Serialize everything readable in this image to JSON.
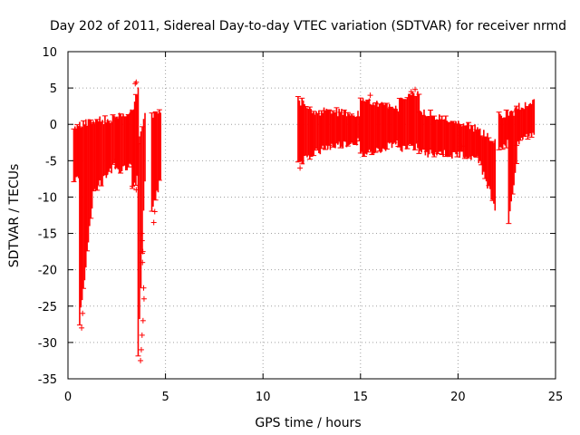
{
  "chart_data": {
    "type": "scatter",
    "title": "Day 202 of 2011, Sidereal Day-to-day VTEC variation (SDTVAR) for receiver nrmd",
    "xlabel": "GPS time / hours",
    "ylabel": "SDTVAR / TECUs",
    "xlim": [
      0,
      25
    ],
    "ylim": [
      -35,
      10
    ],
    "xticks": [
      0,
      5,
      10,
      15,
      20,
      25
    ],
    "yticks": [
      -35,
      -30,
      -25,
      -20,
      -15,
      -10,
      -5,
      0,
      5,
      10
    ],
    "grid": true,
    "series_color": "#ff0000",
    "series": [
      {
        "name": "SDTVAR",
        "segments": [
          {
            "x_start": 0.3,
            "x_end": 0.6,
            "lower": [
              -8,
              -8.5
            ],
            "upper": [
              0,
              0.5
            ]
          },
          {
            "x_start": 0.6,
            "x_end": 1.3,
            "lower": [
              -28,
              -10
            ],
            "upper": [
              0.5,
              1
            ]
          },
          {
            "x_start": 1.3,
            "x_end": 2.5,
            "lower": [
              -10,
              -6
            ],
            "upper": [
              1,
              1.5
            ]
          },
          {
            "x_start": 2.5,
            "x_end": 3.3,
            "lower": [
              -7,
              -6
            ],
            "upper": [
              1.5,
              2.5
            ]
          },
          {
            "x_start": 3.3,
            "x_end": 3.6,
            "lower": [
              -9,
              -8
            ],
            "upper": [
              2,
              5.8
            ]
          },
          {
            "x_start": 3.6,
            "x_end": 3.95,
            "lower": [
              -32.5,
              -8
            ],
            "upper": [
              -2,
              2.5
            ]
          },
          {
            "x_start": 4.3,
            "x_end": 4.75,
            "lower": [
              -13,
              -8
            ],
            "upper": [
              2,
              2.5
            ]
          },
          {
            "x_start": 11.8,
            "x_end": 13.0,
            "lower": [
              -6,
              -4
            ],
            "upper": [
              4,
              1.8
            ]
          },
          {
            "x_start": 13.0,
            "x_end": 15.0,
            "lower": [
              -4,
              -3
            ],
            "upper": [
              2.5,
              2
            ]
          },
          {
            "x_start": 15.0,
            "x_end": 17.0,
            "lower": [
              -5,
              -3
            ],
            "upper": [
              4,
              2.5
            ]
          },
          {
            "x_start": 17.0,
            "x_end": 18.0,
            "lower": [
              -4,
              -3.5
            ],
            "upper": [
              4,
              5
            ]
          },
          {
            "x_start": 18.0,
            "x_end": 21.0,
            "lower": [
              -4.5,
              -5
            ],
            "upper": [
              2.5,
              0
            ]
          },
          {
            "x_start": 21.0,
            "x_end": 21.9,
            "lower": [
              -5,
              -12
            ],
            "upper": [
              0,
              -2
            ]
          },
          {
            "x_start": 22.1,
            "x_end": 22.6,
            "lower": [
              -4,
              -3
            ],
            "upper": [
              2,
              2
            ]
          },
          {
            "x_start": 22.6,
            "x_end": 23.0,
            "lower": [
              -14,
              -6
            ],
            "upper": [
              2,
              2.5
            ]
          },
          {
            "x_start": 23.0,
            "x_end": 23.9,
            "lower": [
              -3,
              -2
            ],
            "upper": [
              3,
              3.5
            ]
          }
        ],
        "points": [
          [
            0.7,
            -28
          ],
          [
            0.75,
            -26
          ],
          [
            3.45,
            5.6
          ],
          [
            3.5,
            5.8
          ],
          [
            3.78,
            -15
          ],
          [
            3.8,
            -16
          ],
          [
            3.82,
            -19
          ],
          [
            3.84,
            -17.5
          ],
          [
            3.72,
            -32.5
          ],
          [
            3.76,
            -31
          ],
          [
            3.8,
            -29
          ],
          [
            3.85,
            -27
          ],
          [
            3.9,
            -24
          ],
          [
            3.88,
            -22.5
          ],
          [
            3.3,
            -8.5
          ],
          [
            3.5,
            -9
          ],
          [
            4.4,
            -13.5
          ],
          [
            4.45,
            -12
          ],
          [
            15.5,
            4
          ],
          [
            11.9,
            -6
          ],
          [
            20.2,
            -3
          ],
          [
            17.8,
            4.8
          ],
          [
            17.6,
            4.5
          ]
        ]
      }
    ]
  }
}
